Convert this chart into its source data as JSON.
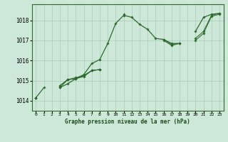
{
  "xlabel": "Graphe pression niveau de la mer (hPa)",
  "x_ticks": [
    0,
    1,
    2,
    3,
    4,
    5,
    6,
    7,
    8,
    9,
    10,
    11,
    12,
    13,
    14,
    15,
    16,
    17,
    18,
    19,
    20,
    21,
    22,
    23
  ],
  "ylim": [
    1013.5,
    1018.8
  ],
  "y_ticks": [
    1014,
    1015,
    1016,
    1017,
    1018
  ],
  "bg_color": "#cde8d8",
  "grid_color": "#a8ccba",
  "line_color": "#2d6a2d",
  "lines": [
    [
      1014.15,
      1014.65,
      null,
      1014.65,
      1014.85,
      1015.1,
      1015.3,
      1015.85,
      1016.05,
      1016.85,
      1017.85,
      1018.25,
      1018.15,
      1017.8,
      1017.55,
      1017.1,
      1017.05,
      1016.85,
      1016.85,
      null,
      1017.45,
      1018.15,
      1018.3,
      1018.35
    ],
    [
      1014.15,
      null,
      null,
      1014.65,
      1015.05,
      1015.1,
      1015.2,
      1015.5,
      1015.55,
      null,
      null,
      1018.3,
      null,
      null,
      null,
      null,
      null,
      null,
      null,
      null,
      null,
      null,
      null,
      null
    ],
    [
      1014.15,
      null,
      null,
      1014.75,
      1015.05,
      1015.1,
      1015.25,
      1015.5,
      1015.55,
      null,
      null,
      null,
      null,
      null,
      null,
      null,
      1017.05,
      1016.8,
      1016.85,
      null,
      1017.1,
      1017.45,
      1018.25,
      1018.35
    ],
    [
      1014.15,
      null,
      null,
      1014.75,
      1015.05,
      1015.15,
      1015.25,
      1015.5,
      1015.55,
      null,
      null,
      null,
      null,
      null,
      null,
      null,
      1017.0,
      1016.75,
      1016.85,
      null,
      1017.0,
      1017.35,
      1018.2,
      1018.3
    ]
  ]
}
